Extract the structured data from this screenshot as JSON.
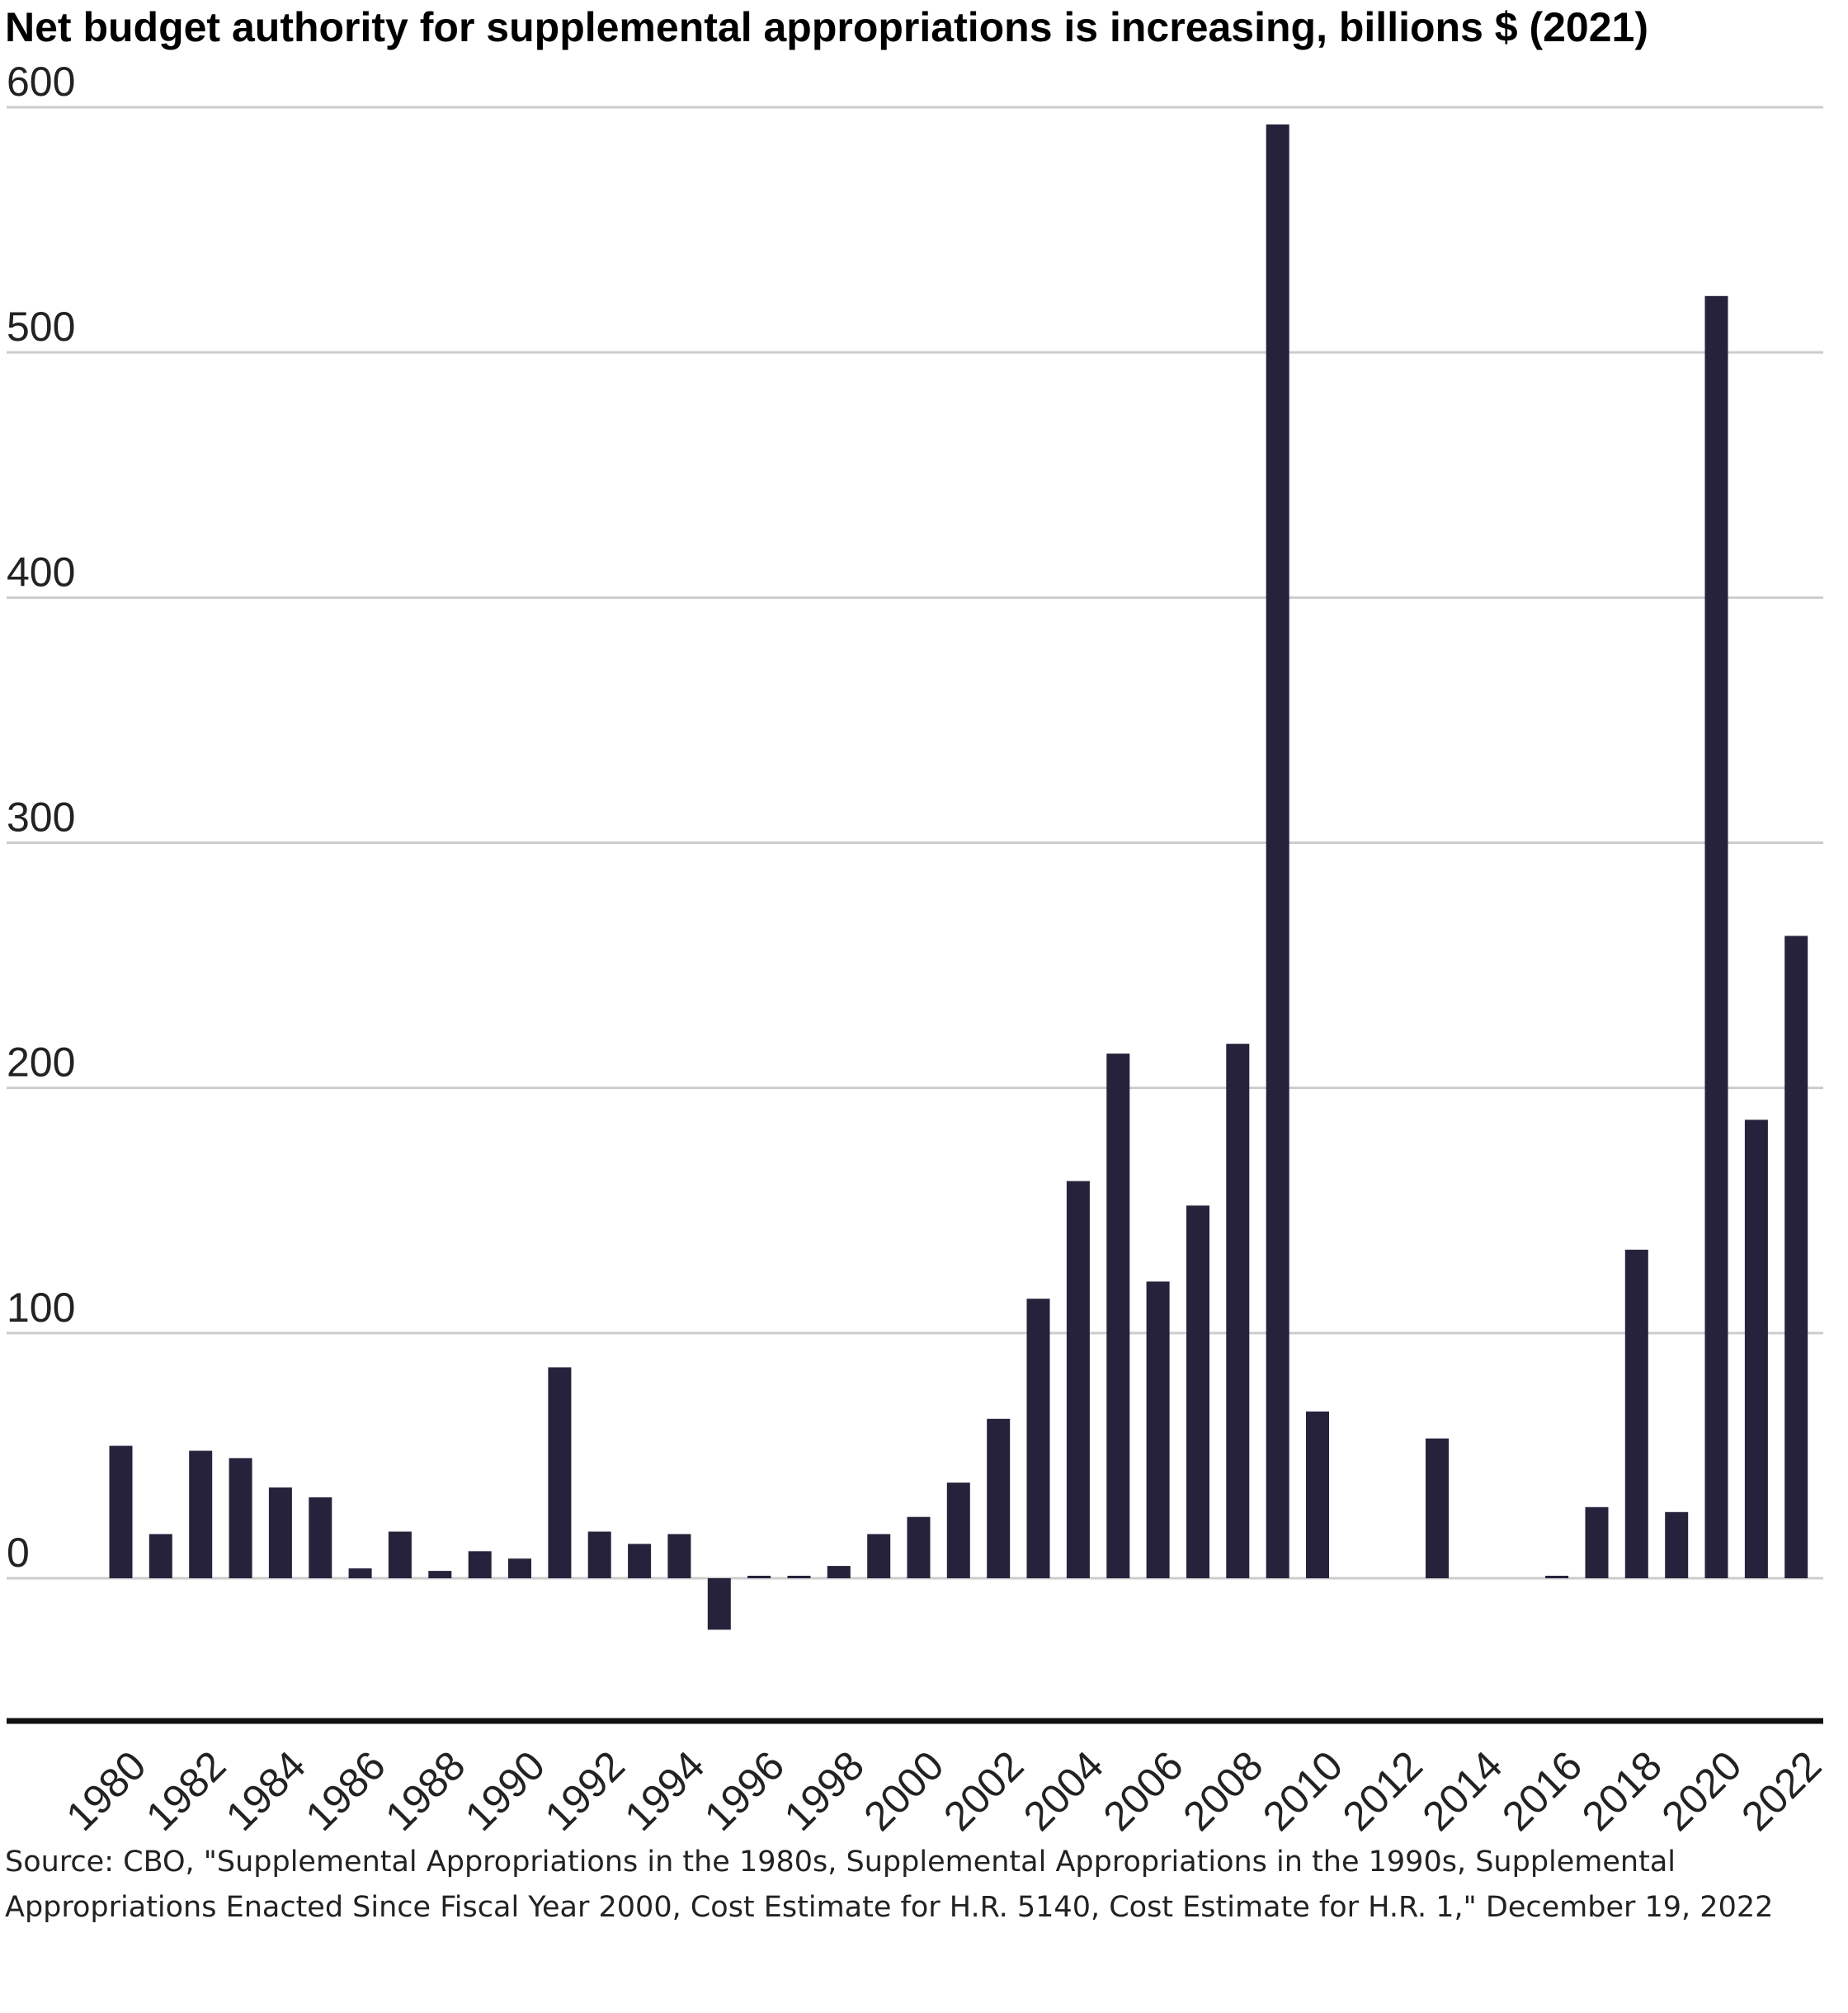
{
  "chart_data": {
    "type": "bar",
    "title": "Net budget authority for supplemental appropriations is increasing, billions $ (2021)",
    "xlabel": "",
    "ylabel": "",
    "ylim": [
      -60,
      600
    ],
    "yticks": [
      0,
      100,
      200,
      300,
      400,
      500,
      600
    ],
    "bar_color": "#27223c",
    "grid": true,
    "categories": [
      "1980",
      "1981",
      "1982",
      "1983",
      "1984",
      "1985",
      "1986",
      "1987",
      "1988",
      "1989",
      "1990",
      "1991",
      "1992",
      "1993",
      "1994",
      "1995",
      "1996",
      "1997",
      "1998",
      "1999",
      "2000",
      "2001",
      "2002",
      "2003",
      "2004",
      "2005",
      "2006",
      "2007",
      "2008",
      "2009",
      "2010",
      "2011",
      "2012",
      "2013",
      "2014",
      "2015",
      "2016",
      "2017",
      "2018",
      "2019",
      "2020",
      "2021",
      "2022",
      "2023"
    ],
    "x_tick_labels": [
      "1980",
      "1982",
      "1984",
      "1986",
      "1988",
      "1990",
      "1992",
      "1994",
      "1996",
      "1998",
      "2000",
      "2002",
      "2004",
      "2006",
      "2008",
      "2010",
      "2012",
      "2014",
      "2016",
      "2018",
      "2020",
      "2022"
    ],
    "values": [
      54,
      18,
      52,
      49,
      37,
      33,
      4,
      19,
      3,
      11,
      8,
      86,
      19,
      14,
      18,
      -21,
      1,
      1,
      5,
      18,
      25,
      39,
      65,
      114,
      162,
      214,
      121,
      152,
      218,
      593,
      68,
      0,
      0,
      57,
      0,
      0,
      1,
      29,
      134,
      27,
      523,
      187,
      262,
      0
    ]
  },
  "source_text": "Source: CBO, \"Supplemental Appropriations in the 1980s, Supplemental Appropriations in the 1990s, Supplemental Appropriations Enacted Since Fiscal Year 2000, Cost Estimate for H.R. 5140, Cost Estimate for H.R. 1,\" December 19, 2022"
}
